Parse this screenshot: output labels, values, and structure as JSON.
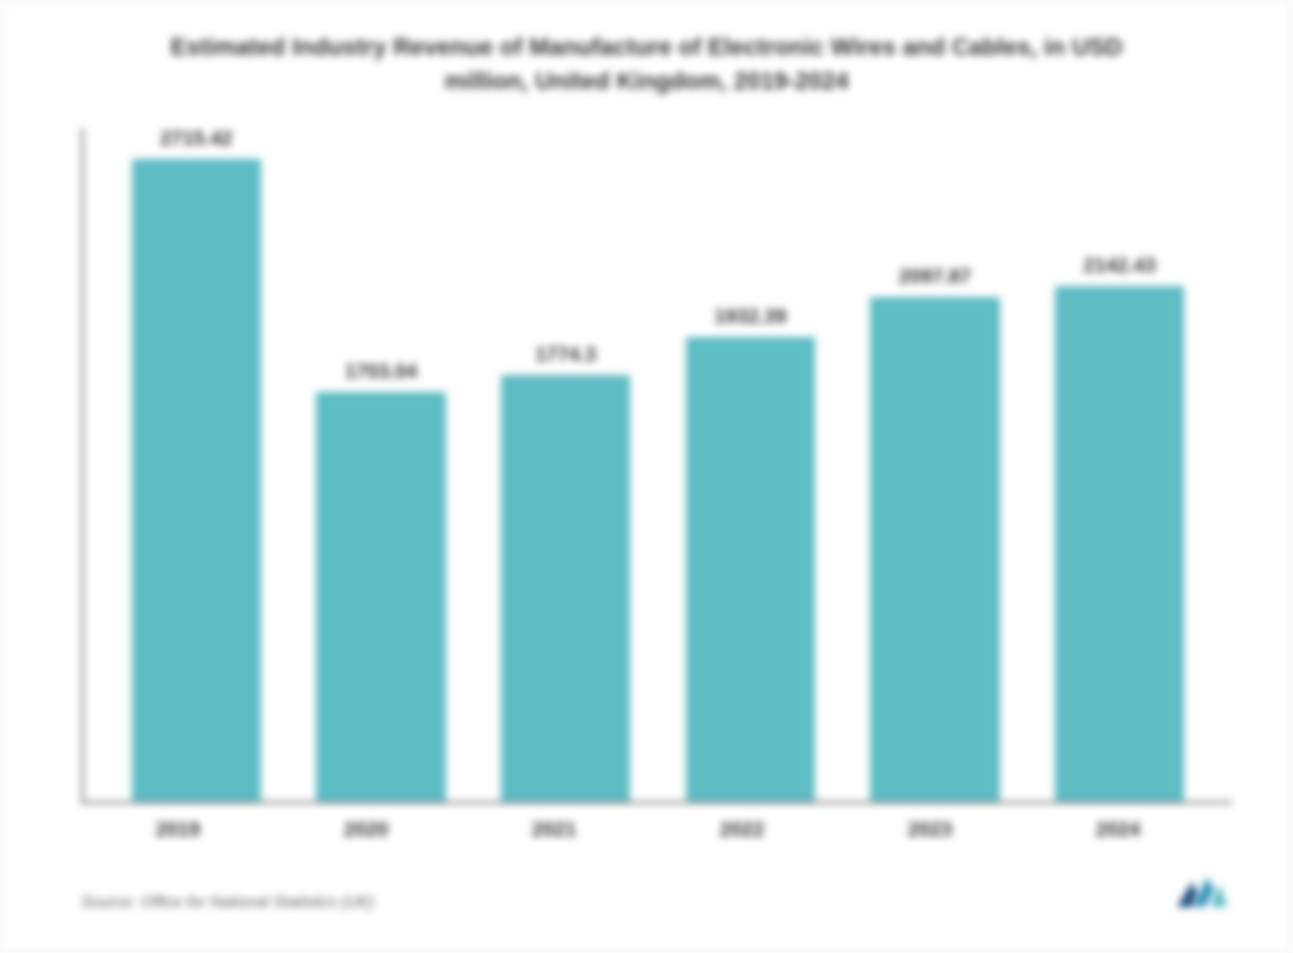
{
  "chart": {
    "type": "bar",
    "title": "Estimated Industry Revenue of Manufacture of Electronic Wires and Cables, in USD million, United Kingdom, 2019-2024",
    "categories": [
      "2019",
      "2020",
      "2021",
      "2022",
      "2023",
      "2024"
    ],
    "values": [
      2715.42,
      1703.04,
      1774.3,
      1932.39,
      2097.87,
      2142.43
    ],
    "value_labels": [
      "2715.42",
      "1703.04",
      "1774.3",
      "1932.39",
      "2097.87",
      "2142.43"
    ],
    "bar_color": "#5dbcc4",
    "title_color": "#333333",
    "label_color": "#333333",
    "axis_color": "#888888",
    "background_color": "#ffffff",
    "title_fontsize": 24,
    "label_fontsize": 20,
    "value_fontsize": 20,
    "ylim_max": 2800,
    "bar_width_pct": 70
  },
  "source": {
    "text": "Source: Office for National Statistics (UK)"
  },
  "logo": {
    "name": "mordor-intelligence-logo",
    "colors": [
      "#1a4d7a",
      "#2a8fb8",
      "#5dbcc4"
    ]
  }
}
